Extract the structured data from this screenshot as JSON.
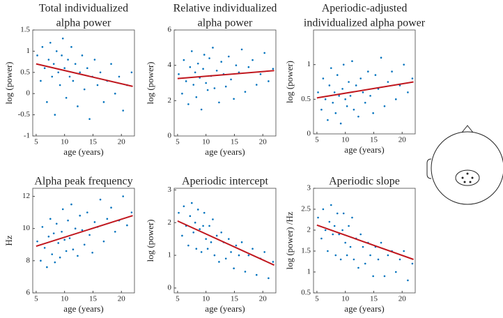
{
  "chart_data": [
    {
      "type": "scatter",
      "title": [
        "Total individualized",
        "alpha power"
      ],
      "xlabel": "age (years)",
      "ylabel": "log (power)",
      "xlim": [
        4.4,
        22.3
      ],
      "xticks": [
        5,
        10,
        15,
        20
      ],
      "ylim": [
        -1,
        1.5
      ],
      "yticks": [
        -1,
        -0.5,
        0,
        0.5,
        1,
        1.5
      ],
      "color": "#0072bd",
      "x": [
        5.2,
        5.8,
        6.1,
        6.5,
        6.9,
        7.2,
        7.5,
        7.8,
        8.1,
        8.3,
        8.6,
        8.9,
        9.2,
        9.5,
        9.7,
        10.0,
        10.3,
        10.6,
        10.9,
        11.2,
        11.5,
        11.9,
        12.3,
        12.7,
        13.1,
        13.5,
        14.0,
        14.4,
        14.9,
        15.3,
        15.8,
        16.3,
        16.9,
        17.5,
        18.2,
        18.9,
        19.6,
        20.3,
        21.0,
        21.8
      ],
      "values": [
        0.9,
        0.3,
        1.1,
        0.6,
        -0.2,
        0.8,
        1.2,
        0.4,
        0.7,
        -0.5,
        1.0,
        0.5,
        0.2,
        0.9,
        1.3,
        0.6,
        -0.1,
        0.8,
        0.4,
        1.1,
        0.3,
        0.7,
        -0.3,
        0.5,
        0.9,
        0.1,
        0.6,
        -0.6,
        0.4,
        0.8,
        0.2,
        0.5,
        -0.2,
        0.3,
        0.7,
        0.0,
        0.4,
        -0.4,
        0.2,
        0.5
      ],
      "fit": {
        "color": "#c0171e",
        "x": [
          5,
          22
        ],
        "values": [
          0.7,
          0.17
        ]
      }
    },
    {
      "type": "scatter",
      "title": [
        "Relative individualized",
        "alpha power"
      ],
      "xlabel": "age (years)",
      "ylabel": "log (power)",
      "xlim": [
        4.4,
        22.3
      ],
      "xticks": [
        5,
        10,
        15,
        20
      ],
      "ylim": [
        0,
        6
      ],
      "yticks": [
        0,
        2,
        4,
        6
      ],
      "color": "#0072bd",
      "x": [
        5.2,
        5.8,
        6.1,
        6.5,
        6.9,
        7.2,
        7.5,
        7.8,
        8.1,
        8.3,
        8.6,
        8.9,
        9.2,
        9.5,
        9.7,
        10.0,
        10.3,
        10.6,
        10.9,
        11.2,
        11.5,
        11.9,
        12.3,
        12.7,
        13.1,
        13.5,
        14.0,
        14.4,
        14.9,
        15.3,
        15.8,
        16.3,
        16.9,
        17.5,
        18.2,
        18.9,
        19.6,
        20.3,
        21.0,
        21.8
      ],
      "values": [
        3.5,
        2.4,
        4.3,
        3.1,
        1.8,
        3.9,
        4.8,
        2.9,
        3.6,
        2.2,
        4.1,
        3.3,
        1.5,
        3.8,
        4.6,
        3.0,
        2.6,
        4.4,
        3.4,
        5.0,
        2.7,
        3.7,
        1.9,
        4.2,
        3.5,
        2.8,
        4.5,
        3.2,
        2.1,
        4.0,
        3.6,
        4.9,
        2.5,
        3.9,
        4.3,
        2.9,
        3.5,
        4.7,
        3.1,
        3.8
      ],
      "fit": {
        "color": "#c0171e",
        "x": [
          5,
          22
        ],
        "values": [
          3.25,
          3.7
        ]
      }
    },
    {
      "type": "scatter",
      "title": [
        "Aperiodic-adjusted",
        "individualized alpha power"
      ],
      "xlabel": "age (years)",
      "ylabel": "log (power)",
      "xlim": [
        4.4,
        22.3
      ],
      "xticks": [
        5,
        10,
        15,
        20
      ],
      "ylim": [
        0,
        1.5
      ],
      "yticks": [
        0,
        0.5,
        1
      ],
      "color": "#0072bd",
      "x": [
        5.2,
        5.8,
        6.1,
        6.5,
        6.9,
        7.2,
        7.5,
        7.8,
        8.1,
        8.3,
        8.6,
        8.9,
        9.2,
        9.5,
        9.7,
        10.0,
        10.3,
        10.6,
        10.9,
        11.2,
        11.5,
        11.9,
        12.3,
        12.7,
        13.1,
        13.5,
        14.0,
        14.4,
        14.9,
        15.3,
        15.8,
        16.3,
        16.9,
        17.5,
        18.2,
        18.9,
        19.6,
        20.3,
        21.0,
        21.8
      ],
      "values": [
        0.6,
        0.35,
        0.8,
        0.5,
        0.2,
        0.7,
        0.95,
        0.45,
        0.6,
        0.3,
        0.85,
        0.55,
        0.15,
        0.65,
        1.0,
        0.5,
        0.4,
        0.75,
        0.55,
        1.05,
        0.35,
        0.7,
        0.25,
        0.8,
        0.6,
        0.45,
        0.9,
        0.55,
        0.3,
        0.85,
        0.65,
        1.1,
        0.4,
        0.75,
        0.9,
        0.5,
        0.7,
        1.0,
        0.6,
        0.8
      ],
      "fit": {
        "color": "#c0171e",
        "x": [
          5,
          22
        ],
        "values": [
          0.52,
          0.75
        ]
      }
    },
    {
      "type": "scatter",
      "title": [
        "Alpha peak frequency"
      ],
      "xlabel": "age (years)",
      "ylabel": "Hz",
      "xlim": [
        4.4,
        22.3
      ],
      "xticks": [
        5,
        10,
        15,
        20
      ],
      "ylim": [
        6,
        12.5
      ],
      "yticks": [
        6,
        8,
        10,
        12
      ],
      "color": "#0072bd",
      "x": [
        5.2,
        5.8,
        6.1,
        6.5,
        6.9,
        7.2,
        7.5,
        7.8,
        8.1,
        8.3,
        8.6,
        8.9,
        9.2,
        9.5,
        9.7,
        10.0,
        10.3,
        10.6,
        10.9,
        11.2,
        11.5,
        11.9,
        12.3,
        12.7,
        13.1,
        13.5,
        14.0,
        14.4,
        14.9,
        15.3,
        15.8,
        16.3,
        16.9,
        17.5,
        18.2,
        18.9,
        19.6,
        20.3,
        21.0,
        21.8
      ],
      "values": [
        9.2,
        8.0,
        10.1,
        8.8,
        7.6,
        9.5,
        10.6,
        8.4,
        9.7,
        7.9,
        10.3,
        9.1,
        8.2,
        9.8,
        11.2,
        9.3,
        8.6,
        10.5,
        9.4,
        11.5,
        8.7,
        10.0,
        8.3,
        10.8,
        9.9,
        9.0,
        11.0,
        9.6,
        8.5,
        10.4,
        10.1,
        11.8,
        9.2,
        10.6,
        11.3,
        9.8,
        10.5,
        12.0,
        10.2,
        11.0
      ],
      "fit": {
        "color": "#c0171e",
        "x": [
          5,
          22
        ],
        "values": [
          8.9,
          10.8
        ]
      }
    },
    {
      "type": "scatter",
      "title": [
        "Aperiodic intercept"
      ],
      "xlabel": "age (years)",
      "ylabel": "log (power)",
      "xlim": [
        4.4,
        22.3
      ],
      "xticks": [
        5,
        10,
        15,
        20
      ],
      "ylim": [
        -0.15,
        3.05
      ],
      "yticks": [
        0,
        1,
        2,
        3
      ],
      "color": "#0072bd",
      "x": [
        5.2,
        5.8,
        6.1,
        6.5,
        6.9,
        7.2,
        7.5,
        7.8,
        8.1,
        8.3,
        8.6,
        8.9,
        9.2,
        9.5,
        9.7,
        10.0,
        10.3,
        10.6,
        10.9,
        11.2,
        11.5,
        11.9,
        12.3,
        12.7,
        13.1,
        13.5,
        14.0,
        14.4,
        14.9,
        15.3,
        15.8,
        16.3,
        16.9,
        17.5,
        18.2,
        18.9,
        19.6,
        20.3,
        21.0,
        21.8
      ],
      "values": [
        2.3,
        1.6,
        2.5,
        1.9,
        1.3,
        2.2,
        2.6,
        1.7,
        2.0,
        1.2,
        2.4,
        1.8,
        1.1,
        1.9,
        2.3,
        1.5,
        1.2,
        1.9,
        1.4,
        2.1,
        1.0,
        1.6,
        0.8,
        1.7,
        1.4,
        0.9,
        1.5,
        1.1,
        0.6,
        1.3,
        1.0,
        1.4,
        0.5,
        1.0,
        1.2,
        0.4,
        0.9,
        1.1,
        0.3,
        0.8
      ],
      "fit": {
        "color": "#c0171e",
        "x": [
          5,
          22
        ],
        "values": [
          2.05,
          0.7
        ]
      }
    },
    {
      "type": "scatter",
      "title": [
        "Aperiodic slope"
      ],
      "xlabel": "age (years)",
      "ylabel": "log (power) /Hz",
      "xlim": [
        4.4,
        22.3
      ],
      "xticks": [
        5,
        10,
        15,
        20
      ],
      "ylim": [
        0.5,
        3
      ],
      "yticks": [
        0.5,
        1,
        1.5,
        2,
        2.5,
        3
      ],
      "color": "#0072bd",
      "x": [
        5.2,
        5.8,
        6.1,
        6.5,
        6.9,
        7.2,
        7.5,
        7.8,
        8.1,
        8.3,
        8.6,
        8.9,
        9.2,
        9.5,
        9.7,
        10.0,
        10.3,
        10.6,
        10.9,
        11.2,
        11.5,
        11.9,
        12.3,
        12.7,
        13.1,
        13.5,
        14.0,
        14.4,
        14.9,
        15.3,
        15.8,
        16.3,
        16.9,
        17.5,
        18.2,
        18.9,
        19.6,
        20.3,
        21.0,
        21.8
      ],
      "values": [
        2.3,
        1.8,
        2.5,
        2.0,
        1.5,
        2.2,
        2.6,
        1.9,
        2.1,
        1.4,
        2.4,
        1.9,
        1.3,
        2.0,
        2.4,
        1.7,
        1.4,
        2.1,
        1.6,
        2.3,
        1.3,
        1.8,
        1.1,
        1.9,
        1.6,
        1.2,
        1.7,
        1.4,
        0.9,
        1.6,
        1.3,
        1.7,
        0.9,
        1.4,
        1.5,
        1.0,
        1.3,
        1.5,
        0.8,
        1.2
      ],
      "fit": {
        "color": "#c0171e",
        "x": [
          5,
          22
        ],
        "values": [
          2.12,
          1.3
        ]
      }
    }
  ]
}
